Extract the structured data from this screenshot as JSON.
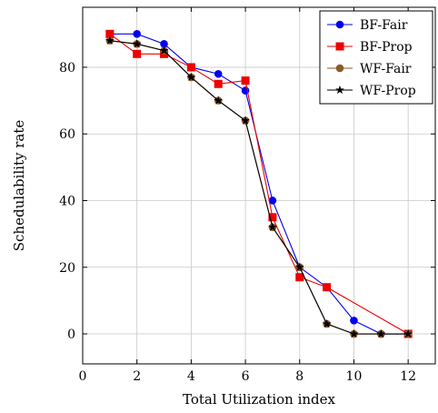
{
  "chart_data": {
    "type": "line",
    "xlabel": "Total Utilization index",
    "ylabel": "Schedulability rate",
    "xlim": [
      0,
      13
    ],
    "ylim": [
      -9,
      98
    ],
    "xticks": [
      0,
      2,
      4,
      6,
      8,
      10,
      12
    ],
    "yticks": [
      0,
      20,
      40,
      60,
      80
    ],
    "grid": true,
    "legend_position": "top-right",
    "series": [
      {
        "name": "BF-Fair",
        "color": "#0000ee",
        "marker": "circle",
        "x": [
          1,
          2,
          3,
          4,
          5,
          6,
          7,
          8,
          9,
          10,
          11,
          12
        ],
        "y": [
          90,
          90,
          87,
          80,
          78,
          73,
          40,
          20,
          14,
          4,
          0,
          0
        ]
      },
      {
        "name": "BF-Prop",
        "color": "#ee0000",
        "marker": "square",
        "x": [
          1,
          2,
          3,
          4,
          5,
          6,
          7,
          8,
          9,
          12
        ],
        "y": [
          90,
          84,
          84,
          80,
          75,
          76,
          35,
          17,
          14,
          0
        ]
      },
      {
        "name": "WF-Fair",
        "color": "#8b5a2b",
        "marker": "circle",
        "x": [
          1,
          2,
          3,
          4,
          5,
          6,
          7,
          8,
          9,
          10,
          11,
          12
        ],
        "y": [
          88,
          87,
          85,
          77,
          70,
          64,
          32,
          20,
          3,
          0,
          0,
          0
        ]
      },
      {
        "name": "WF-Prop",
        "color": "#000000",
        "marker": "star",
        "x": [
          1,
          2,
          3,
          4,
          5,
          6,
          7,
          8,
          9,
          10,
          11,
          12
        ],
        "y": [
          88,
          87,
          85,
          77,
          70,
          64,
          32,
          20,
          3,
          0,
          0,
          0
        ]
      }
    ]
  }
}
